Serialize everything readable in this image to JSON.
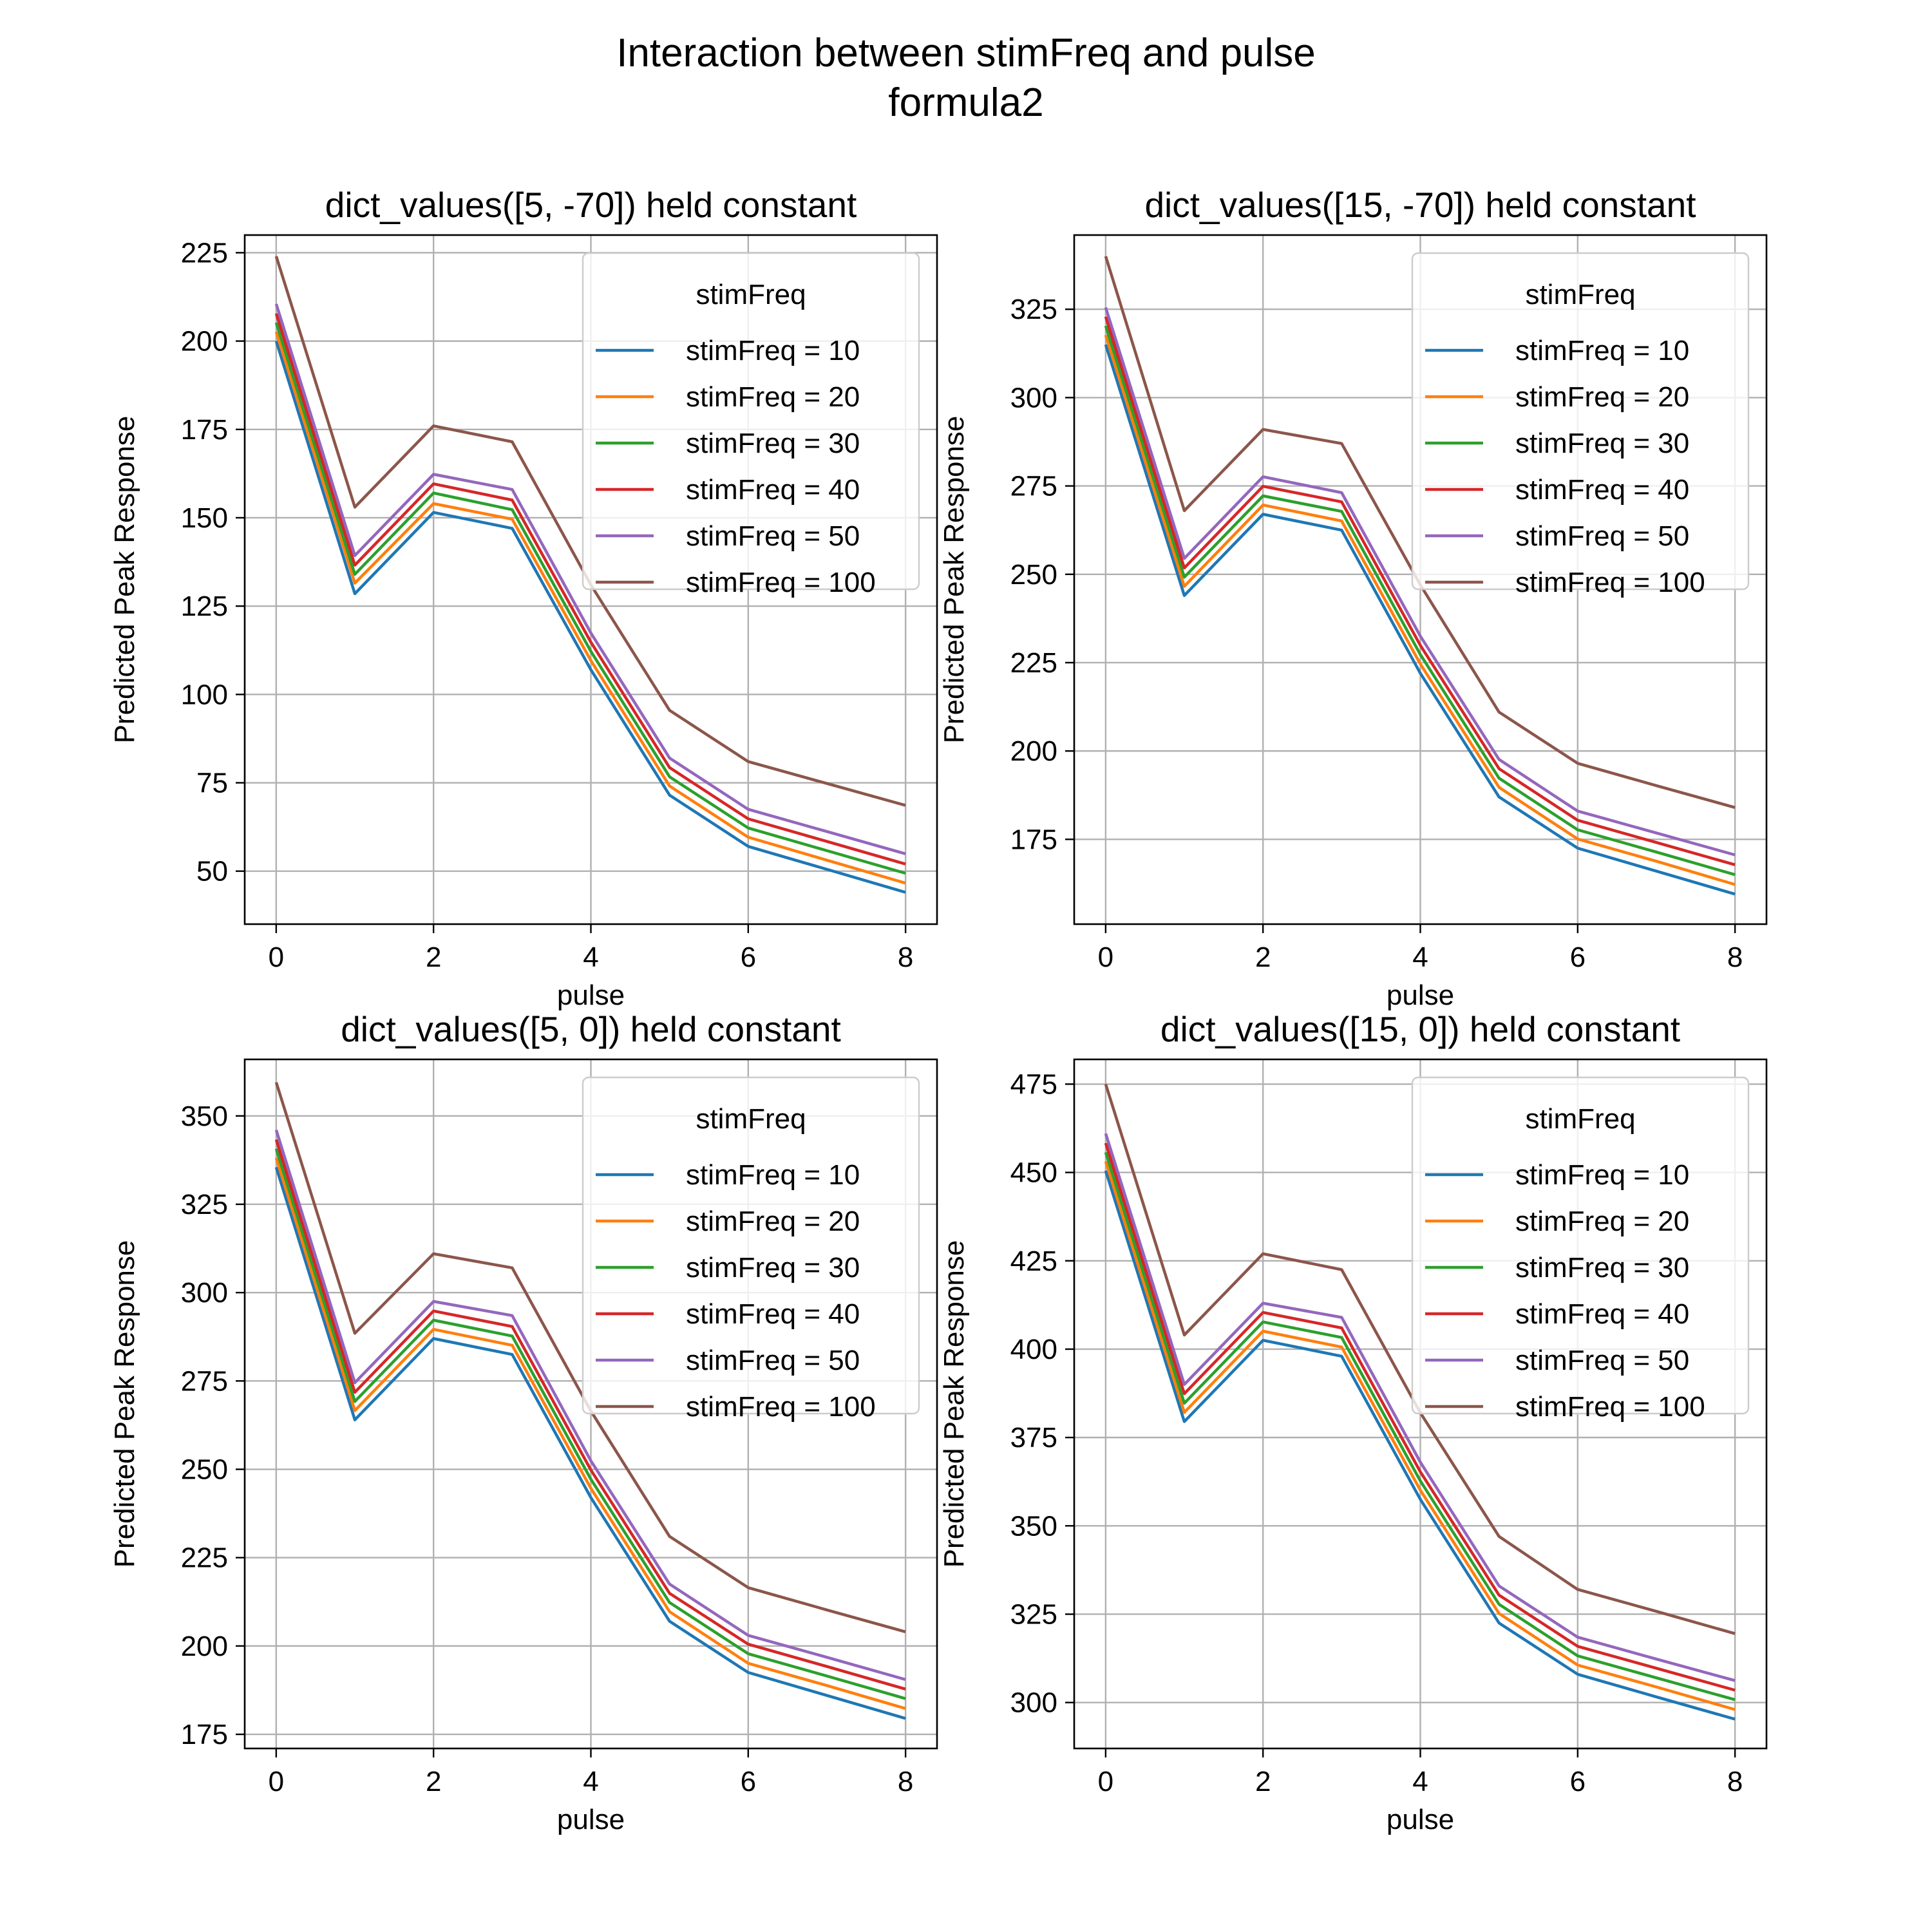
{
  "figure": {
    "title_line1": "Interaction between stimFreq and pulse",
    "title_line2": "formula2"
  },
  "series_colors": [
    "#1f77b4",
    "#ff7f0e",
    "#2ca02c",
    "#d62728",
    "#9467bd",
    "#8c564b"
  ],
  "chart_data": [
    {
      "type": "line",
      "title": "dict_values([5, -70]) held constant",
      "xlabel": "pulse",
      "ylabel": "Predicted Peak Response",
      "xlim": [
        -0.4,
        8.4
      ],
      "ylim": [
        35,
        230
      ],
      "xticks": [
        0,
        2,
        4,
        6,
        8
      ],
      "yticks": [
        50,
        75,
        100,
        125,
        150,
        175,
        200,
        225
      ],
      "grid": true,
      "legend_title": "stimFreq",
      "legend_loc": "upper right",
      "x": [
        0,
        1,
        2,
        3,
        4,
        5,
        6,
        7,
        8
      ],
      "series": [
        {
          "name": "stimFreq = 10",
          "values": [
            200.0,
            128.5,
            151.5,
            147.0,
            107.0,
            71.5,
            57.0,
            50.5,
            44.0
          ]
        },
        {
          "name": "stimFreq = 20",
          "values": [
            202.6,
            131.5,
            154.0,
            149.6,
            109.6,
            74.1,
            59.6,
            53.1,
            46.6
          ]
        },
        {
          "name": "stimFreq = 30",
          "values": [
            205.2,
            134.0,
            157.0,
            152.3,
            112.2,
            76.7,
            62.2,
            55.8,
            49.4
          ]
        },
        {
          "name": "stimFreq = 40",
          "values": [
            207.8,
            136.6,
            159.6,
            155.0,
            114.8,
            79.3,
            64.8,
            58.4,
            52.0
          ]
        },
        {
          "name": "stimFreq = 50",
          "values": [
            210.5,
            139.3,
            162.3,
            158.0,
            117.4,
            82.0,
            67.5,
            61.2,
            54.9
          ]
        },
        {
          "name": "stimFreq = 100",
          "values": [
            224.0,
            153.0,
            176.0,
            171.5,
            131.0,
            95.5,
            81.0,
            74.8,
            68.6
          ]
        }
      ]
    },
    {
      "type": "line",
      "title": "dict_values([15, -70]) held constant",
      "xlabel": "pulse",
      "ylabel": "Predicted Peak Response",
      "xlim": [
        -0.4,
        8.4
      ],
      "ylim": [
        151,
        346
      ],
      "xticks": [
        0,
        2,
        4,
        6,
        8
      ],
      "yticks": [
        175,
        200,
        225,
        250,
        275,
        300,
        325
      ],
      "grid": true,
      "legend_title": "stimFreq",
      "legend_loc": "upper right",
      "x": [
        0,
        1,
        2,
        3,
        4,
        5,
        6,
        7,
        8
      ],
      "series": [
        {
          "name": "stimFreq = 10",
          "values": [
            315.0,
            244.0,
            267.0,
            262.5,
            222.0,
            187.0,
            172.5,
            166.0,
            159.5
          ]
        },
        {
          "name": "stimFreq = 20",
          "values": [
            317.7,
            246.6,
            269.6,
            265.1,
            224.6,
            189.7,
            175.1,
            168.8,
            162.2
          ]
        },
        {
          "name": "stimFreq = 30",
          "values": [
            320.3,
            249.2,
            272.2,
            267.8,
            227.3,
            192.3,
            177.7,
            171.4,
            165.0
          ]
        },
        {
          "name": "stimFreq = 40",
          "values": [
            322.9,
            251.8,
            274.9,
            270.5,
            229.9,
            195.0,
            180.4,
            174.1,
            167.8
          ]
        },
        {
          "name": "stimFreq = 50",
          "values": [
            325.5,
            254.5,
            277.6,
            273.1,
            232.5,
            197.6,
            183.0,
            176.8,
            170.6
          ]
        },
        {
          "name": "stimFreq = 100",
          "values": [
            340.0,
            268.0,
            291.0,
            287.0,
            247.0,
            211.0,
            196.5,
            190.2,
            184.0
          ]
        }
      ]
    },
    {
      "type": "line",
      "title": "dict_values([5, 0]) held constant",
      "xlabel": "pulse",
      "ylabel": "Predicted Peak Response",
      "xlim": [
        -0.4,
        8.4
      ],
      "ylim": [
        171,
        366
      ],
      "xticks": [
        0,
        2,
        4,
        6,
        8
      ],
      "yticks": [
        175,
        200,
        225,
        250,
        275,
        300,
        325,
        350
      ],
      "grid": true,
      "legend_title": "stimFreq",
      "legend_loc": "upper right",
      "x": [
        0,
        1,
        2,
        3,
        4,
        5,
        6,
        7,
        8
      ],
      "series": [
        {
          "name": "stimFreq = 10",
          "values": [
            335.5,
            264.0,
            287.0,
            282.5,
            242.0,
            207.0,
            192.5,
            186.0,
            179.5
          ]
        },
        {
          "name": "stimFreq = 20",
          "values": [
            338.1,
            266.6,
            289.6,
            285.1,
            244.6,
            209.7,
            195.1,
            188.8,
            182.3
          ]
        },
        {
          "name": "stimFreq = 30",
          "values": [
            340.7,
            269.2,
            292.2,
            287.7,
            247.2,
            212.3,
            197.8,
            191.5,
            185.1
          ]
        },
        {
          "name": "stimFreq = 40",
          "values": [
            343.3,
            271.8,
            294.8,
            290.4,
            249.8,
            214.9,
            200.5,
            194.2,
            187.8
          ]
        },
        {
          "name": "stimFreq = 50",
          "values": [
            346.0,
            274.5,
            297.5,
            293.5,
            252.4,
            217.5,
            203.0,
            196.8,
            190.5
          ]
        },
        {
          "name": "stimFreq = 100",
          "values": [
            359.5,
            288.5,
            311.0,
            307.0,
            266.5,
            231.0,
            216.5,
            210.2,
            204.0
          ]
        }
      ]
    },
    {
      "type": "line",
      "title": "dict_values([15, 0]) held constant",
      "xlabel": "pulse",
      "ylabel": "Predicted Peak Response",
      "xlim": [
        -0.4,
        8.4
      ],
      "ylim": [
        287,
        482
      ],
      "xticks": [
        0,
        2,
        4,
        6,
        8
      ],
      "yticks": [
        300,
        325,
        350,
        375,
        400,
        425,
        450,
        475
      ],
      "grid": true,
      "legend_title": "stimFreq",
      "legend_loc": "upper right",
      "x": [
        0,
        1,
        2,
        3,
        4,
        5,
        6,
        7,
        8
      ],
      "series": [
        {
          "name": "stimFreq = 10",
          "values": [
            450.5,
            379.5,
            402.5,
            398.0,
            357.5,
            322.5,
            308.0,
            301.6,
            295.3
          ]
        },
        {
          "name": "stimFreq = 20",
          "values": [
            453.1,
            382.1,
            405.1,
            400.6,
            360.1,
            325.2,
            310.6,
            304.4,
            298.0
          ]
        },
        {
          "name": "stimFreq = 30",
          "values": [
            455.7,
            384.7,
            407.7,
            403.3,
            362.7,
            327.8,
            313.2,
            307.0,
            300.8
          ]
        },
        {
          "name": "stimFreq = 40",
          "values": [
            458.3,
            387.4,
            410.4,
            406.0,
            365.3,
            330.4,
            315.9,
            309.7,
            303.5
          ]
        },
        {
          "name": "stimFreq = 50",
          "values": [
            461.0,
            390.0,
            413.0,
            409.0,
            368.0,
            333.0,
            318.5,
            312.3,
            306.2
          ]
        },
        {
          "name": "stimFreq = 100",
          "values": [
            475.0,
            404.0,
            427.0,
            422.5,
            382.0,
            347.0,
            332.0,
            325.8,
            319.5
          ]
        }
      ]
    }
  ]
}
